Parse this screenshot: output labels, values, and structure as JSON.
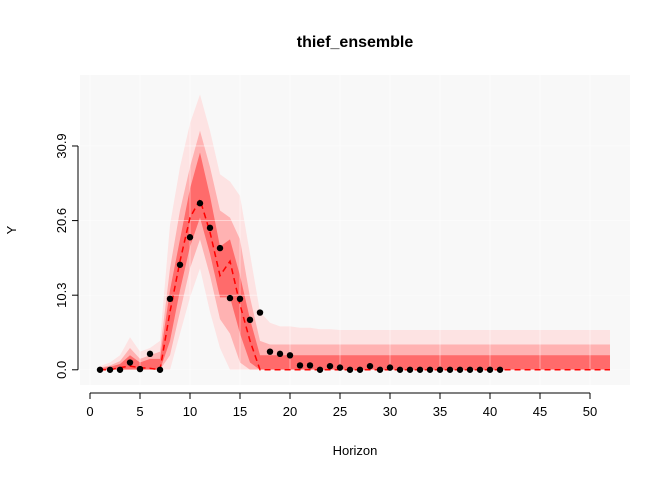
{
  "chart_data": {
    "type": "fan",
    "title": "thief_ensemble",
    "x_label": "Horizon",
    "y_label": "Y",
    "xlim": [
      -1,
      54
    ],
    "ylim": [
      -2.1,
      40.7
    ],
    "xticks": [
      0,
      5,
      10,
      15,
      20,
      25,
      30,
      35,
      40,
      45,
      50
    ],
    "yticks": [
      {
        "value": 0,
        "label": "0.0"
      },
      10.3,
      20.6,
      30.9
    ],
    "grid": true,
    "background": "#f8f8f8",
    "x": [
      1,
      2,
      3,
      4,
      5,
      6,
      7,
      8,
      9,
      10,
      11,
      12,
      13,
      14,
      15,
      16,
      17,
      18,
      19,
      20,
      21,
      22,
      23,
      24,
      25,
      26,
      27,
      28,
      29,
      30,
      31,
      32,
      33,
      34,
      35,
      36,
      37,
      38,
      39,
      40,
      41,
      42,
      43,
      44,
      45,
      46,
      47,
      48,
      49,
      50,
      51,
      52
    ],
    "intervals": [
      {
        "color": "#fde3e3",
        "upper": [
          0.5,
          1,
          2,
          4.5,
          2.5,
          3,
          4,
          20,
          28,
          34,
          38,
          33,
          27,
          26,
          24,
          16,
          8,
          6.5,
          6,
          6,
          5.8,
          5.8,
          5.6,
          5.6,
          5.5,
          5.5,
          5.5,
          5.5,
          5.5,
          5.5,
          5.5,
          5.5,
          5.5,
          5.5,
          5.5,
          5.5,
          5.5,
          5.5,
          5.5,
          5.5,
          5.5,
          5.5,
          5.5,
          5.5,
          5.5,
          5.5,
          5.5,
          5.5,
          5.5,
          5.5,
          5.5,
          5.5
        ],
        "lower": [
          0,
          0,
          0,
          0,
          0,
          0,
          0,
          0,
          5,
          10,
          14,
          8,
          3,
          0,
          0,
          0,
          0,
          0,
          0,
          0,
          0,
          0,
          0,
          0,
          0,
          0,
          0,
          0,
          0,
          0,
          0,
          0,
          0,
          0,
          0,
          0,
          0,
          0,
          0,
          0,
          0,
          0,
          0,
          0,
          0,
          0,
          0,
          0,
          0,
          0,
          0,
          0
        ]
      },
      {
        "color": "#ffb2b2",
        "upper": [
          0.3,
          0.6,
          1.2,
          3,
          1.5,
          2,
          2.5,
          14,
          22,
          28,
          33,
          28,
          22,
          21,
          18,
          10,
          4,
          3.5,
          3.5,
          3.5,
          3.5,
          3.5,
          3.5,
          3.5,
          3.5,
          3.5,
          3.5,
          3.5,
          3.5,
          3.5,
          3.5,
          3.5,
          3.5,
          3.5,
          3.5,
          3.5,
          3.5,
          3.5,
          3.5,
          3.5,
          3.5,
          3.5,
          3.5,
          3.5,
          3.5,
          3.5,
          3.5,
          3.5,
          3.5,
          3.5,
          3.5,
          3.5
        ],
        "lower": [
          0,
          0,
          0,
          0,
          0,
          0,
          0,
          2,
          8,
          14,
          18,
          13,
          7,
          5,
          1,
          0,
          0,
          0,
          0,
          0,
          0,
          0,
          0,
          0,
          0,
          0,
          0,
          0,
          0,
          0,
          0,
          0,
          0,
          0,
          0,
          0,
          0,
          0,
          0,
          0,
          0,
          0,
          0,
          0,
          0,
          0,
          0,
          0,
          0,
          0,
          0,
          0
        ]
      },
      {
        "color": "#ff6b6b",
        "upper": [
          0.2,
          0.4,
          0.8,
          2,
          1,
          1.5,
          1.5,
          11,
          18,
          25,
          30,
          24,
          17,
          18,
          13,
          7,
          2,
          2,
          2,
          2,
          2,
          2,
          2,
          2,
          2,
          2,
          2,
          2,
          2,
          2,
          2,
          2,
          2,
          2,
          2,
          2,
          2,
          2,
          2,
          2,
          2,
          2,
          2,
          2,
          2,
          2,
          2,
          2,
          2,
          2,
          2,
          2
        ],
        "lower": [
          0,
          0,
          0,
          0,
          0,
          0,
          0,
          4,
          11,
          17,
          21,
          16,
          10,
          10,
          5,
          1,
          0,
          0,
          0,
          0,
          0,
          0,
          0,
          0,
          0,
          0,
          0,
          0,
          0,
          0,
          0,
          0,
          0,
          0,
          0,
          0,
          0,
          0,
          0,
          0,
          0,
          0,
          0,
          0,
          0,
          0,
          0,
          0,
          0,
          0,
          0,
          0
        ]
      }
    ],
    "forecast": {
      "color": "#ff0000",
      "values": [
        0,
        0,
        0.3,
        0.5,
        0.3,
        0.2,
        0,
        8,
        15,
        21,
        23.5,
        19,
        13,
        15,
        9,
        4,
        0,
        0,
        0,
        0,
        0,
        0,
        0,
        0,
        0,
        0,
        0,
        0,
        0,
        0,
        0,
        0,
        0,
        0,
        0,
        0,
        0,
        0,
        0,
        0,
        0,
        0,
        0,
        0,
        0,
        0,
        0,
        0,
        0,
        0,
        0,
        0
      ]
    },
    "actual": {
      "color": "#000000",
      "x": [
        1,
        2,
        3,
        4,
        5,
        6,
        7,
        8,
        9,
        10,
        11,
        12,
        13,
        14,
        15,
        16,
        17,
        18,
        19,
        20,
        21,
        22,
        23,
        24,
        25,
        26,
        27,
        28,
        29,
        30,
        31,
        32,
        33,
        34,
        35,
        36,
        37,
        38,
        39,
        40,
        41
      ],
      "values": [
        0,
        0,
        0,
        1.0,
        0.1,
        2.2,
        0,
        9.8,
        14.5,
        18.3,
        23.0,
        19.6,
        16.8,
        9.9,
        9.8,
        6.9,
        7.9,
        2.5,
        2.2,
        2.0,
        0.6,
        0.6,
        0,
        0.5,
        0.3,
        0,
        0,
        0.5,
        0,
        0.3,
        0,
        0,
        0,
        0,
        0,
        0,
        0,
        0,
        0,
        0,
        0
      ]
    }
  }
}
